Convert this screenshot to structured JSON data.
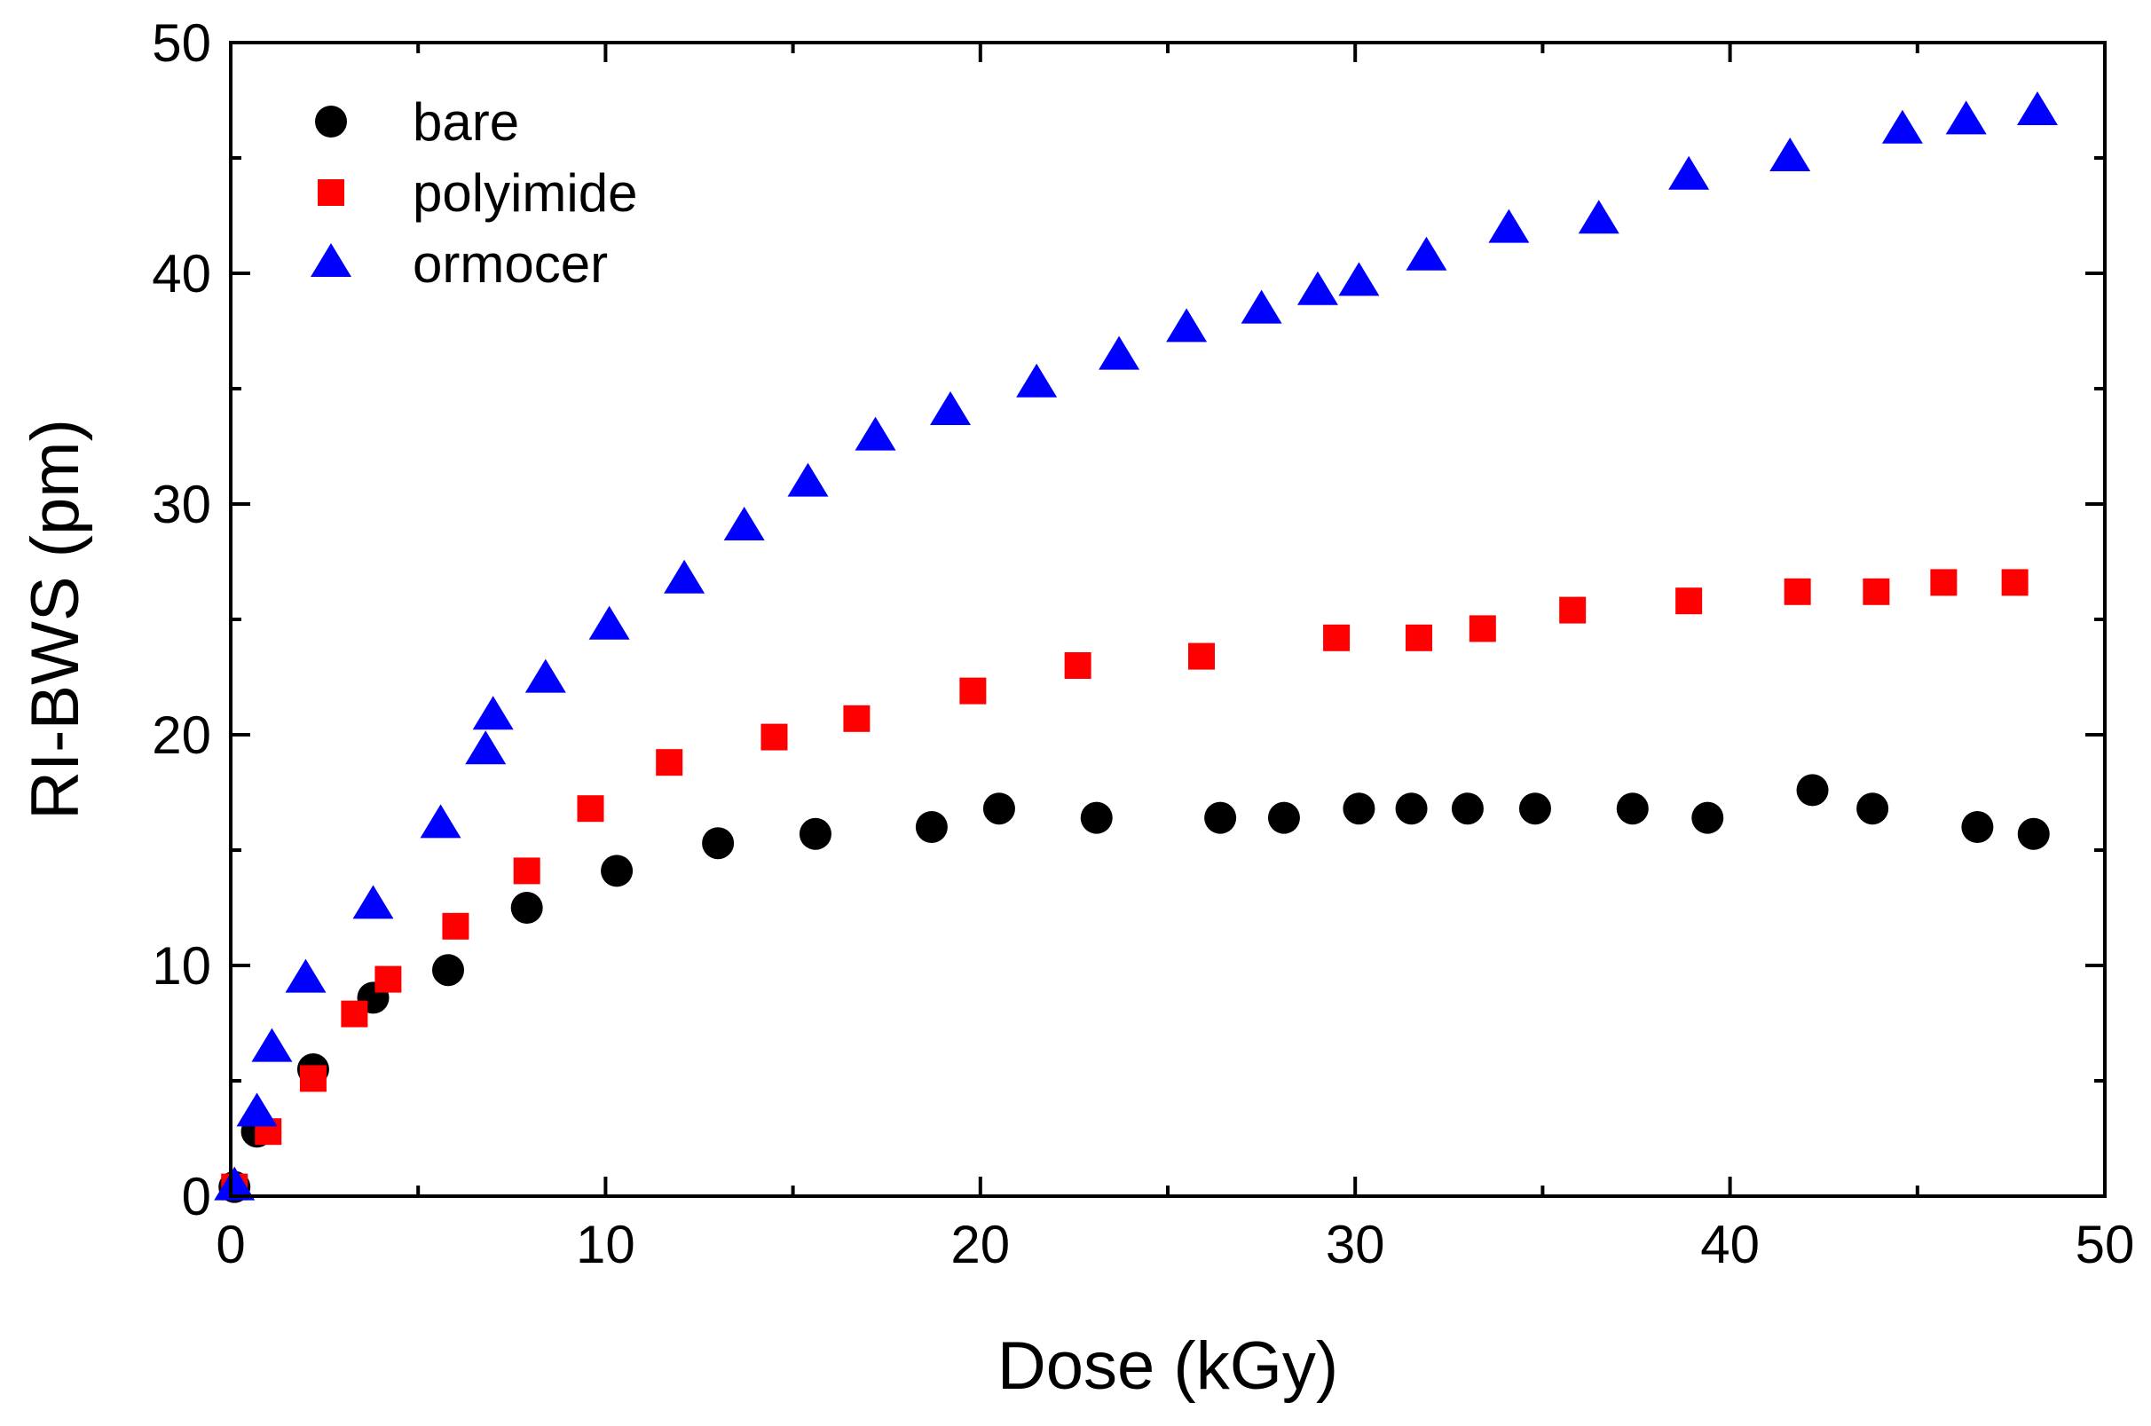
{
  "chart_data": {
    "type": "scatter",
    "title": "",
    "xlabel": "Dose (kGy)",
    "ylabel": "RI-BWS (pm)",
    "xlim": [
      0,
      50
    ],
    "ylim": [
      0,
      50
    ],
    "xticks": [
      0,
      10,
      20,
      30,
      40,
      50
    ],
    "yticks": [
      0,
      10,
      20,
      30,
      40,
      50
    ],
    "grid": false,
    "legend_position": "top-left",
    "series": [
      {
        "name": "bare",
        "marker": "circle",
        "color": "#000000",
        "x": [
          0.1,
          0.7,
          2.2,
          3.8,
          5.8,
          7.9,
          10.3,
          13.0,
          15.6,
          18.7,
          20.5,
          23.1,
          26.4,
          28.1,
          30.1,
          31.5,
          33.0,
          34.8,
          37.4,
          39.4,
          42.2,
          43.8,
          46.6,
          48.1
        ],
        "y": [
          0.4,
          2.8,
          5.5,
          8.6,
          9.8,
          12.5,
          14.1,
          15.3,
          15.7,
          16.0,
          16.8,
          16.4,
          16.4,
          16.4,
          16.8,
          16.8,
          16.8,
          16.8,
          16.8,
          16.4,
          17.6,
          16.8,
          16.0,
          15.7
        ]
      },
      {
        "name": "polyimide",
        "marker": "square",
        "color": "#ff0000",
        "x": [
          0.1,
          1.0,
          2.2,
          3.3,
          4.2,
          6.0,
          7.9,
          9.6,
          11.7,
          14.5,
          16.7,
          19.8,
          22.6,
          25.9,
          29.5,
          31.7,
          33.4,
          35.8,
          38.9,
          41.8,
          43.9,
          45.7,
          47.6
        ],
        "y": [
          0.4,
          2.8,
          5.1,
          7.9,
          9.4,
          11.7,
          14.1,
          16.8,
          18.8,
          19.9,
          20.7,
          21.9,
          23.0,
          23.4,
          24.2,
          24.2,
          24.6,
          25.4,
          25.8,
          26.2,
          26.2,
          26.6,
          26.6
        ]
      },
      {
        "name": "ormocer",
        "marker": "triangle",
        "color": "#0000ff",
        "x": [
          0.1,
          0.7,
          1.1,
          2.0,
          3.8,
          5.6,
          6.8,
          7.0,
          8.4,
          10.1,
          12.1,
          13.7,
          15.4,
          17.2,
          19.2,
          21.5,
          23.7,
          25.5,
          27.5,
          29.0,
          30.1,
          31.9,
          34.1,
          36.5,
          38.9,
          41.6,
          44.6,
          46.3,
          48.2
        ],
        "y": [
          0.4,
          3.6,
          6.4,
          9.4,
          12.6,
          16.1,
          19.3,
          20.8,
          22.4,
          24.7,
          26.7,
          29.0,
          30.9,
          32.9,
          34.0,
          35.2,
          36.4,
          37.6,
          38.4,
          39.2,
          39.6,
          40.7,
          41.9,
          42.3,
          44.2,
          45.0,
          46.2,
          46.6,
          47.0
        ]
      }
    ]
  }
}
